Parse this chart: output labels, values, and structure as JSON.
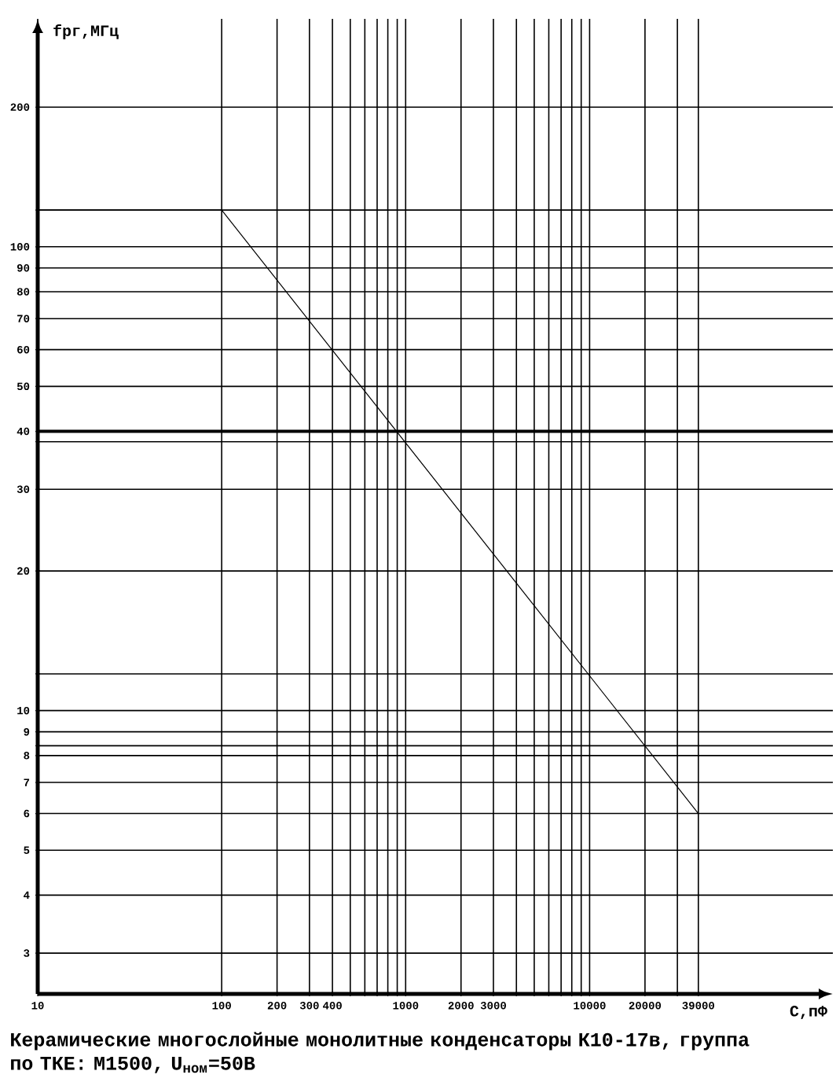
{
  "chart_data": {
    "type": "line",
    "xlabel": "C,пФ",
    "ylabel": "fрг,МГц",
    "annotations": [
      "Керамические многослойные монолитные конденсаторы К10-17в, группа по ТКЕ: М1500, U$_{ном}$=50В"
    ],
    "log": "xy",
    "grid": true,
    "xlim": [
      10,
      210000
    ],
    "ylim": [
      2.45,
      310
    ],
    "xticks": [
      10,
      100,
      200,
      300,
      400,
      {
        "value": 500,
        "label": null
      },
      {
        "value": 600,
        "label": null
      },
      {
        "value": 700,
        "label": null
      },
      {
        "value": 800,
        "label": null
      },
      {
        "value": 900,
        "label": null
      },
      1000,
      2000,
      3000,
      {
        "value": 4000,
        "label": null
      },
      {
        "value": 5000,
        "label": null
      },
      {
        "value": 6000,
        "label": null
      },
      {
        "value": 7000,
        "label": null
      },
      {
        "value": 8000,
        "label": null
      },
      {
        "value": 9000,
        "label": null
      },
      10000,
      20000,
      {
        "value": 30000,
        "label": null
      },
      39000
    ],
    "yticks": [
      3,
      4,
      5,
      6,
      7,
      8,
      {
        "value": 8.4,
        "label": null
      },
      9,
      10,
      {
        "value": 12,
        "label": null
      },
      20,
      30,
      {
        "value": 38,
        "label": null
      },
      40,
      50,
      60,
      70,
      80,
      90,
      100,
      {
        "value": 120,
        "label": null
      },
      200
    ],
    "ref_lines": [
      {
        "axis": "y",
        "value": 40
      }
    ],
    "series": [
      {
        "color": "#000000",
        "x": [
          10,
          100,
          39000
        ],
        "values": [
          120,
          120,
          6
        ]
      }
    ]
  }
}
